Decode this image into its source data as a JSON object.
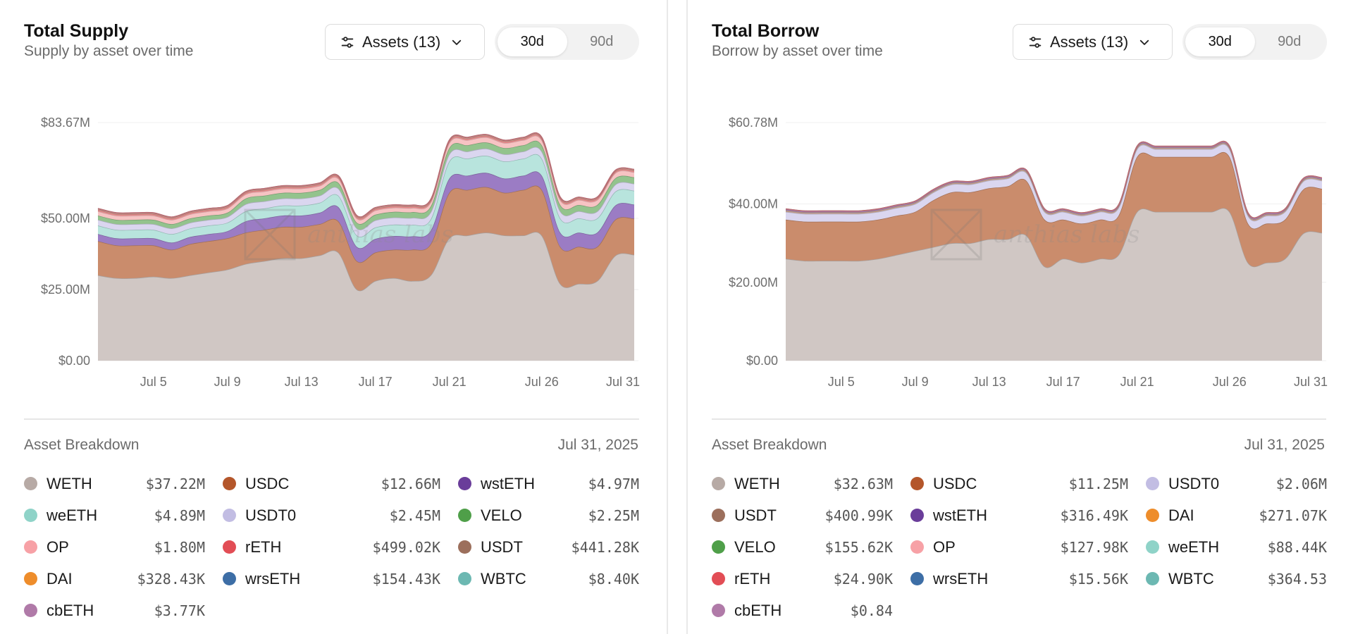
{
  "panels": {
    "supply": {
      "title": "Total Supply",
      "subtitle": "Supply by asset over time",
      "assets_button": "Assets (13)",
      "ranges": [
        "30d",
        "90d"
      ],
      "active_range": "30d",
      "watermark": "anthias labs",
      "breakdown_title": "Asset Breakdown",
      "breakdown_date": "Jul 31, 2025",
      "assets": [
        {
          "name": "WETH",
          "value": "$37.22M",
          "color": "#b7aaa5"
        },
        {
          "name": "USDC",
          "value": "$12.66M",
          "color": "#b4562a"
        },
        {
          "name": "wstETH",
          "value": "$4.97M",
          "color": "#6a3d9a"
        },
        {
          "name": "weETH",
          "value": "$4.89M",
          "color": "#8fd3c8"
        },
        {
          "name": "USDT0",
          "value": "$2.45M",
          "color": "#c2bde3"
        },
        {
          "name": "VELO",
          "value": "$2.25M",
          "color": "#4f9f49"
        },
        {
          "name": "OP",
          "value": "$1.80M",
          "color": "#f7a1a6"
        },
        {
          "name": "rETH",
          "value": "$499.02K",
          "color": "#e24d55"
        },
        {
          "name": "USDT",
          "value": "$441.28K",
          "color": "#9c6f5c"
        },
        {
          "name": "DAI",
          "value": "$328.43K",
          "color": "#ee8d2b"
        },
        {
          "name": "wrsETH",
          "value": "$154.43K",
          "color": "#3d6ea6"
        },
        {
          "name": "WBTC",
          "value": "$8.40K",
          "color": "#6cb8b2"
        },
        {
          "name": "cbETH",
          "value": "$3.77K",
          "color": "#b07aa8"
        }
      ],
      "chart_data": {
        "type": "area",
        "stacked": true,
        "yticks": [
          "$0.00",
          "$25.00M",
          "$50.00M",
          "$83.67M"
        ],
        "ytick_values": [
          0,
          25,
          50,
          83.67
        ],
        "ylim": [
          0,
          83.67
        ],
        "x": [
          "Jul 2",
          "Jul 3",
          "Jul 4",
          "Jul 5",
          "Jul 6",
          "Jul 7",
          "Jul 8",
          "Jul 9",
          "Jul 10",
          "Jul 11",
          "Jul 12",
          "Jul 13",
          "Jul 14",
          "Jul 15",
          "Jul 16",
          "Jul 17",
          "Jul 18",
          "Jul 19",
          "Jul 20",
          "Jul 21",
          "Jul 22",
          "Jul 23",
          "Jul 24",
          "Jul 25",
          "Jul 26",
          "Jul 27",
          "Jul 28",
          "Jul 29",
          "Jul 30",
          "Jul 31"
        ],
        "xticks": [
          "Jul 5",
          "Jul 9",
          "Jul 13",
          "Jul 17",
          "Jul 21",
          "Jul 26",
          "Jul 31"
        ],
        "series": [
          {
            "name": "WETH",
            "color": "#d0c7c4",
            "values": [
              30,
              29,
              29,
              29.5,
              29,
              30,
              31,
              32,
              34,
              35,
              36,
              36,
              37,
              38,
              25,
              28,
              29,
              28,
              30,
              43,
              44,
              45,
              44,
              44,
              44,
              27,
              27,
              28,
              37,
              37.22
            ]
          },
          {
            "name": "USDC",
            "color": "#ca8c6c",
            "values": [
              12,
              11.5,
              11.5,
              11,
              10,
              11,
              11,
              11,
              11,
              11,
              11,
              11,
              11,
              11,
              10,
              10,
              10,
              11,
              11,
              16,
              16,
              16,
              15,
              16,
              16,
              13,
              13,
              12,
              12.66,
              12.66
            ]
          },
          {
            "name": "wstETH",
            "color": "#9b7cc4",
            "values": [
              2.5,
              2.5,
              2.5,
              2.5,
              2.5,
              2.5,
              2.5,
              2.5,
              4,
              4,
              4,
              4,
              4,
              5,
              5,
              4.8,
              4.8,
              4.7,
              4.7,
              5,
              5,
              5,
              5,
              5,
              5,
              5,
              5,
              5,
              4.97,
              4.97
            ]
          },
          {
            "name": "weETH",
            "color": "#b8e4dd",
            "values": [
              3,
              3,
              3,
              3,
              3,
              3,
              3,
              3,
              3.5,
              3.5,
              3.5,
              3.5,
              3.5,
              4,
              4,
              4,
              4,
              4,
              4,
              6,
              6,
              6,
              6,
              6,
              6,
              5,
              5,
              5,
              4.89,
              4.89
            ]
          },
          {
            "name": "USDT0",
            "color": "#dad6ef",
            "values": [
              2,
              2,
              2,
              2,
              2,
              2,
              2,
              2,
              2.5,
              2.5,
              2.5,
              2.5,
              2.5,
              2.5,
              2.5,
              2.5,
              2.5,
              2.5,
              2.5,
              2.5,
              2.5,
              2.5,
              2.5,
              2.5,
              2.5,
              2.5,
              2.5,
              2.45,
              2.45,
              2.45
            ]
          },
          {
            "name": "VELO",
            "color": "#93c38d",
            "values": [
              1.5,
              1.5,
              1.5,
              1.5,
              1.5,
              1.5,
              1.5,
              1.5,
              2,
              2,
              2,
              2,
              2,
              2,
              2,
              2,
              2,
              2,
              2,
              2.2,
              2.2,
              2.2,
              2.2,
              2.2,
              2.2,
              2.2,
              2.2,
              2.25,
              2.25,
              2.25
            ]
          },
          {
            "name": "OP",
            "color": "#f7c3c3",
            "values": [
              1.5,
              1.5,
              1.5,
              1.5,
              1.5,
              1.5,
              1.5,
              1.5,
              1.5,
              1.5,
              1.5,
              1.5,
              1.5,
              1.5,
              1.5,
              1.5,
              1.5,
              1.5,
              1.5,
              1.8,
              1.8,
              1.8,
              1.8,
              1.8,
              1.8,
              1.8,
              1.8,
              1.8,
              1.8,
              1.8
            ]
          },
          {
            "name": "rETH",
            "color": "#ec8d8e",
            "values": [
              0.5,
              0.5,
              0.5,
              0.5,
              0.5,
              0.5,
              0.5,
              0.5,
              0.5,
              0.5,
              0.5,
              0.5,
              0.5,
              0.5,
              0.5,
              0.5,
              0.5,
              0.5,
              0.5,
              0.5,
              0.5,
              0.5,
              0.5,
              0.5,
              0.5,
              0.5,
              0.5,
              0.5,
              0.5,
              0.5
            ]
          },
          {
            "name": "USDT",
            "color": "#c09d8d",
            "values": [
              0.44,
              0.44,
              0.44,
              0.44,
              0.44,
              0.44,
              0.44,
              0.44,
              0.44,
              0.44,
              0.44,
              0.44,
              0.44,
              0.44,
              0.44,
              0.44,
              0.44,
              0.44,
              0.44,
              0.44,
              0.44,
              0.44,
              0.44,
              0.44,
              0.44,
              0.44,
              0.44,
              0.44,
              0.44,
              0.44
            ]
          }
        ]
      }
    },
    "borrow": {
      "title": "Total Borrow",
      "subtitle": "Borrow by asset over time",
      "assets_button": "Assets (13)",
      "ranges": [
        "30d",
        "90d"
      ],
      "active_range": "30d",
      "watermark": "anthias labs",
      "breakdown_title": "Asset Breakdown",
      "breakdown_date": "Jul 31, 2025",
      "assets": [
        {
          "name": "WETH",
          "value": "$32.63M",
          "color": "#b7aaa5"
        },
        {
          "name": "USDC",
          "value": "$11.25M",
          "color": "#b4562a"
        },
        {
          "name": "USDT0",
          "value": "$2.06M",
          "color": "#c2bde3"
        },
        {
          "name": "USDT",
          "value": "$400.99K",
          "color": "#9c6f5c"
        },
        {
          "name": "wstETH",
          "value": "$316.49K",
          "color": "#6a3d9a"
        },
        {
          "name": "DAI",
          "value": "$271.07K",
          "color": "#ee8d2b"
        },
        {
          "name": "VELO",
          "value": "$155.62K",
          "color": "#4f9f49"
        },
        {
          "name": "OP",
          "value": "$127.98K",
          "color": "#f7a1a6"
        },
        {
          "name": "weETH",
          "value": "$88.44K",
          "color": "#8fd3c8"
        },
        {
          "name": "rETH",
          "value": "$24.90K",
          "color": "#e24d55"
        },
        {
          "name": "wrsETH",
          "value": "$15.56K",
          "color": "#3d6ea6"
        },
        {
          "name": "WBTC",
          "value": "$364.53",
          "color": "#6cb8b2"
        },
        {
          "name": "cbETH",
          "value": "$0.84",
          "color": "#b07aa8"
        }
      ],
      "chart_data": {
        "type": "area",
        "stacked": true,
        "yticks": [
          "$0.00",
          "$20.00M",
          "$40.00M",
          "$60.78M"
        ],
        "ytick_values": [
          0,
          20,
          40,
          60.78
        ],
        "ylim": [
          0,
          60.78
        ],
        "x": [
          "Jul 2",
          "Jul 3",
          "Jul 4",
          "Jul 5",
          "Jul 6",
          "Jul 7",
          "Jul 8",
          "Jul 9",
          "Jul 10",
          "Jul 11",
          "Jul 12",
          "Jul 13",
          "Jul 14",
          "Jul 15",
          "Jul 16",
          "Jul 17",
          "Jul 18",
          "Jul 19",
          "Jul 20",
          "Jul 21",
          "Jul 22",
          "Jul 23",
          "Jul 24",
          "Jul 25",
          "Jul 26",
          "Jul 27",
          "Jul 28",
          "Jul 29",
          "Jul 30",
          "Jul 31"
        ],
        "xticks": [
          "Jul 5",
          "Jul 9",
          "Jul 13",
          "Jul 17",
          "Jul 21",
          "Jul 26",
          "Jul 31"
        ],
        "series": [
          {
            "name": "WETH",
            "color": "#d0c7c4",
            "values": [
              26,
              25.5,
              25.5,
              25.5,
              25.5,
              26,
              27,
              28,
              29,
              30,
              30,
              31,
              31,
              32,
              24,
              26,
              25,
              26,
              27,
              38,
              38,
              38,
              38,
              38,
              38,
              25,
              25,
              26,
              32.5,
              32.63
            ]
          },
          {
            "name": "USDC",
            "color": "#ca8c6c",
            "values": [
              10,
              10,
              10,
              10,
              10,
              10,
              10,
              10,
              12,
              13,
              13,
              13,
              13.5,
              14,
              12,
              10,
              10,
              10,
              10,
              14,
              14,
              14,
              14,
              14,
              14,
              10,
              10,
              10,
              11.25,
              11.25
            ]
          },
          {
            "name": "USDT0",
            "color": "#dad6ef",
            "values": [
              2,
              2,
              2,
              2,
              2,
              2,
              2,
              2,
              2,
              2,
              2,
              2,
              2,
              2,
              2,
              2,
              2,
              2,
              2,
              2,
              2,
              2,
              2,
              2,
              2,
              2,
              2,
              2,
              2.06,
              2.06
            ]
          },
          {
            "name": "USDT",
            "color": "#c09d8d",
            "values": [
              0.4,
              0.4,
              0.4,
              0.4,
              0.4,
              0.4,
              0.4,
              0.4,
              0.4,
              0.4,
              0.4,
              0.4,
              0.4,
              0.4,
              0.4,
              0.4,
              0.4,
              0.4,
              0.4,
              0.4,
              0.4,
              0.4,
              0.4,
              0.4,
              0.4,
              0.4,
              0.4,
              0.4,
              0.4,
              0.4
            ]
          },
          {
            "name": "wstETH",
            "color": "#9b7cc4",
            "values": [
              0.32,
              0.32,
              0.32,
              0.32,
              0.32,
              0.32,
              0.32,
              0.32,
              0.32,
              0.32,
              0.32,
              0.32,
              0.32,
              0.32,
              0.32,
              0.32,
              0.32,
              0.32,
              0.32,
              0.32,
              0.32,
              0.32,
              0.32,
              0.32,
              0.32,
              0.32,
              0.32,
              0.32,
              0.32,
              0.32
            ]
          }
        ]
      }
    }
  }
}
